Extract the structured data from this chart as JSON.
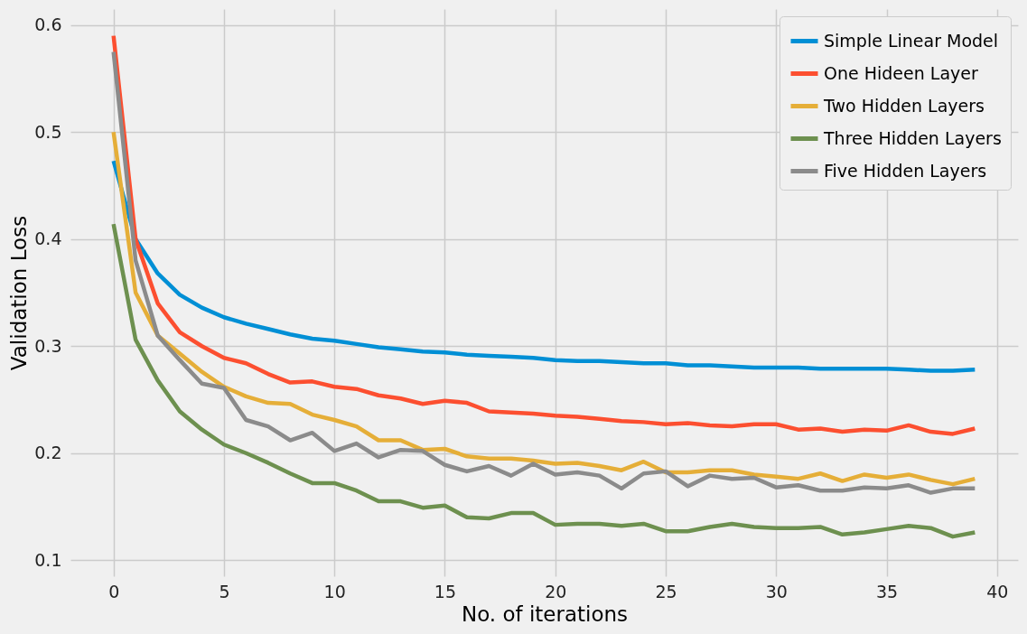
{
  "chart_data": {
    "type": "line",
    "xlabel": "No. of iterations",
    "ylabel": "Validation Loss",
    "x": [
      0,
      1,
      2,
      3,
      4,
      5,
      6,
      7,
      8,
      9,
      10,
      11,
      12,
      13,
      14,
      15,
      16,
      17,
      18,
      19,
      20,
      21,
      22,
      23,
      24,
      25,
      26,
      27,
      28,
      29,
      30,
      31,
      32,
      33,
      34,
      35,
      36,
      37,
      38,
      39
    ],
    "series": [
      {
        "name": "Simple Linear Model",
        "color": "#008fd5",
        "values": [
          0.473,
          0.4,
          0.368,
          0.348,
          0.336,
          0.327,
          0.321,
          0.316,
          0.311,
          0.307,
          0.305,
          0.302,
          0.299,
          0.297,
          0.295,
          0.294,
          0.292,
          0.291,
          0.29,
          0.289,
          0.287,
          0.286,
          0.286,
          0.285,
          0.284,
          0.284,
          0.282,
          0.282,
          0.281,
          0.28,
          0.28,
          0.28,
          0.279,
          0.279,
          0.279,
          0.279,
          0.278,
          0.277,
          0.277,
          0.278
        ]
      },
      {
        "name": "One Hideen Layer",
        "color": "#fc4f30",
        "values": [
          0.59,
          0.4,
          0.34,
          0.313,
          0.3,
          0.289,
          0.284,
          0.274,
          0.266,
          0.267,
          0.262,
          0.26,
          0.254,
          0.251,
          0.246,
          0.249,
          0.247,
          0.239,
          0.238,
          0.237,
          0.235,
          0.234,
          0.232,
          0.23,
          0.229,
          0.227,
          0.228,
          0.226,
          0.225,
          0.227,
          0.227,
          0.222,
          0.223,
          0.22,
          0.222,
          0.221,
          0.226,
          0.22,
          0.218,
          0.223
        ]
      },
      {
        "name": "Two Hidden Layers",
        "color": "#e5ae38",
        "values": [
          0.5,
          0.35,
          0.31,
          0.293,
          0.276,
          0.262,
          0.253,
          0.247,
          0.246,
          0.236,
          0.231,
          0.225,
          0.212,
          0.212,
          0.203,
          0.204,
          0.197,
          0.195,
          0.195,
          0.193,
          0.19,
          0.191,
          0.188,
          0.184,
          0.192,
          0.182,
          0.182,
          0.184,
          0.184,
          0.18,
          0.178,
          0.176,
          0.181,
          0.174,
          0.18,
          0.177,
          0.18,
          0.175,
          0.171,
          0.176
        ]
      },
      {
        "name": "Three Hidden Layers",
        "color": "#6d904f",
        "values": [
          0.414,
          0.306,
          0.268,
          0.239,
          0.222,
          0.208,
          0.2,
          0.191,
          0.181,
          0.172,
          0.172,
          0.165,
          0.155,
          0.155,
          0.149,
          0.151,
          0.14,
          0.139,
          0.144,
          0.144,
          0.133,
          0.134,
          0.134,
          0.132,
          0.134,
          0.127,
          0.127,
          0.131,
          0.134,
          0.131,
          0.13,
          0.13,
          0.131,
          0.124,
          0.126,
          0.129,
          0.132,
          0.13,
          0.122,
          0.126
        ]
      },
      {
        "name": "Five Hidden Layers",
        "color": "#8b8b8b",
        "values": [
          0.575,
          0.38,
          0.31,
          0.287,
          0.265,
          0.261,
          0.231,
          0.225,
          0.212,
          0.219,
          0.202,
          0.209,
          0.196,
          0.203,
          0.202,
          0.189,
          0.183,
          0.188,
          0.179,
          0.19,
          0.18,
          0.182,
          0.179,
          0.167,
          0.181,
          0.183,
          0.169,
          0.179,
          0.176,
          0.177,
          0.168,
          0.17,
          0.165,
          0.165,
          0.168,
          0.167,
          0.17,
          0.163,
          0.167,
          0.167
        ]
      }
    ],
    "xlim": [
      -1.95,
      40.95
    ],
    "xticks": [
      0,
      5,
      10,
      15,
      20,
      25,
      30,
      35,
      40
    ],
    "ylim": [
      0.085,
      0.615
    ],
    "yticks": [
      0.1,
      0.2,
      0.3,
      0.4,
      0.5,
      0.6
    ],
    "grid": true,
    "legend": "top right",
    "marker": "none",
    "line_style": "solid"
  }
}
